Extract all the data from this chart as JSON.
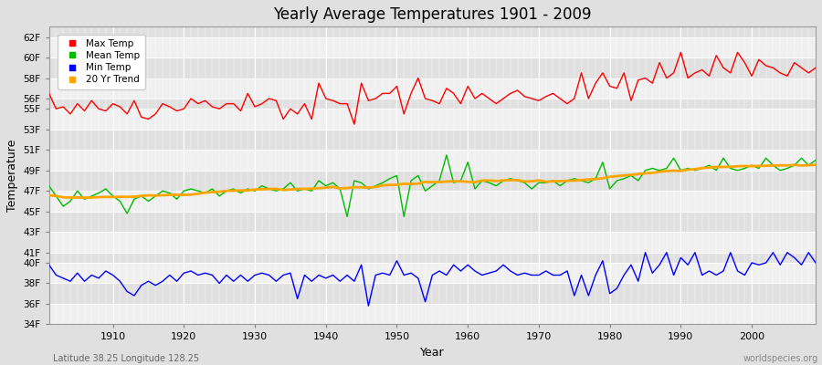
{
  "title": "Yearly Average Temperatures 1901 - 2009",
  "xlabel": "Year",
  "ylabel": "Temperature",
  "years": [
    1901,
    1902,
    1903,
    1904,
    1905,
    1906,
    1907,
    1908,
    1909,
    1910,
    1911,
    1912,
    1913,
    1914,
    1915,
    1916,
    1917,
    1918,
    1919,
    1920,
    1921,
    1922,
    1923,
    1924,
    1925,
    1926,
    1927,
    1928,
    1929,
    1930,
    1931,
    1932,
    1933,
    1934,
    1935,
    1936,
    1937,
    1938,
    1939,
    1940,
    1941,
    1942,
    1943,
    1944,
    1945,
    1946,
    1947,
    1948,
    1949,
    1950,
    1951,
    1952,
    1953,
    1954,
    1955,
    1956,
    1957,
    1958,
    1959,
    1960,
    1961,
    1962,
    1963,
    1964,
    1965,
    1966,
    1967,
    1968,
    1969,
    1970,
    1971,
    1972,
    1973,
    1974,
    1975,
    1976,
    1977,
    1978,
    1979,
    1980,
    1981,
    1982,
    1983,
    1984,
    1985,
    1986,
    1987,
    1988,
    1989,
    1990,
    1991,
    1992,
    1993,
    1994,
    1995,
    1996,
    1997,
    1998,
    1999,
    2000,
    2001,
    2002,
    2003,
    2004,
    2005,
    2006,
    2007,
    2008,
    2009
  ],
  "max_temp": [
    56.5,
    55.0,
    55.2,
    54.5,
    55.5,
    54.8,
    55.8,
    55.0,
    54.8,
    55.5,
    55.2,
    54.5,
    55.8,
    54.2,
    54.0,
    54.5,
    55.5,
    55.2,
    54.8,
    55.0,
    56.0,
    55.5,
    55.8,
    55.2,
    55.0,
    55.5,
    55.5,
    54.8,
    56.5,
    55.2,
    55.5,
    56.0,
    55.8,
    54.0,
    55.0,
    54.5,
    55.5,
    54.0,
    57.5,
    56.0,
    55.8,
    55.5,
    55.5,
    53.5,
    57.5,
    55.8,
    56.0,
    56.5,
    56.5,
    57.2,
    54.5,
    56.5,
    58.0,
    56.0,
    55.8,
    55.5,
    57.0,
    56.5,
    55.5,
    57.2,
    56.0,
    56.5,
    56.0,
    55.5,
    56.0,
    56.5,
    56.8,
    56.2,
    56.0,
    55.8,
    56.2,
    56.5,
    56.0,
    55.5,
    56.0,
    58.5,
    56.0,
    57.5,
    58.5,
    57.2,
    57.0,
    58.5,
    55.8,
    57.8,
    58.0,
    57.5,
    59.5,
    58.0,
    58.5,
    60.5,
    58.0,
    58.5,
    58.8,
    58.2,
    60.2,
    59.0,
    58.5,
    60.5,
    59.5,
    58.2,
    59.8,
    59.2,
    59.0,
    58.5,
    58.2,
    59.5,
    59.0,
    58.5,
    59.0
  ],
  "mean_temp": [
    47.5,
    46.5,
    45.5,
    46.0,
    47.0,
    46.2,
    46.5,
    46.8,
    47.2,
    46.5,
    46.0,
    44.8,
    46.2,
    46.5,
    46.0,
    46.5,
    47.0,
    46.8,
    46.2,
    47.0,
    47.2,
    47.0,
    46.8,
    47.2,
    46.5,
    47.0,
    47.2,
    46.8,
    47.2,
    47.0,
    47.5,
    47.2,
    47.0,
    47.2,
    47.8,
    47.0,
    47.2,
    47.0,
    48.0,
    47.5,
    47.8,
    47.2,
    44.5,
    48.0,
    47.8,
    47.2,
    47.5,
    47.8,
    48.2,
    48.5,
    44.5,
    48.0,
    48.5,
    47.0,
    47.5,
    48.0,
    50.5,
    47.8,
    48.0,
    49.8,
    47.2,
    48.0,
    47.8,
    47.5,
    48.0,
    48.2,
    48.0,
    47.8,
    47.2,
    47.8,
    47.8,
    48.0,
    47.5,
    48.0,
    48.2,
    48.0,
    47.8,
    48.2,
    49.8,
    47.2,
    48.0,
    48.2,
    48.5,
    48.0,
    49.0,
    49.2,
    49.0,
    49.2,
    50.2,
    49.0,
    49.2,
    49.0,
    49.2,
    49.5,
    49.0,
    50.2,
    49.2,
    49.0,
    49.2,
    49.5,
    49.2,
    50.2,
    49.5,
    49.0,
    49.2,
    49.5,
    50.2,
    49.5,
    50.0
  ],
  "min_temp": [
    39.8,
    38.8,
    38.5,
    38.2,
    39.0,
    38.2,
    38.8,
    38.5,
    39.2,
    38.8,
    38.2,
    37.2,
    36.8,
    37.8,
    38.2,
    37.8,
    38.2,
    38.8,
    38.2,
    39.0,
    39.2,
    38.8,
    39.0,
    38.8,
    38.0,
    38.8,
    38.2,
    38.8,
    38.2,
    38.8,
    39.0,
    38.8,
    38.2,
    38.8,
    39.0,
    36.5,
    38.8,
    38.2,
    38.8,
    38.5,
    38.8,
    38.2,
    38.8,
    38.2,
    39.8,
    35.8,
    38.8,
    39.0,
    38.8,
    40.2,
    38.8,
    39.0,
    38.5,
    36.2,
    38.8,
    39.2,
    38.8,
    39.8,
    39.2,
    39.8,
    39.2,
    38.8,
    39.0,
    39.2,
    39.8,
    39.2,
    38.8,
    39.0,
    38.8,
    38.8,
    39.2,
    38.8,
    38.8,
    39.2,
    36.8,
    38.8,
    36.8,
    38.8,
    40.2,
    37.0,
    37.5,
    38.8,
    39.8,
    38.2,
    41.0,
    39.0,
    39.8,
    41.0,
    38.8,
    40.5,
    39.8,
    41.0,
    38.8,
    39.2,
    38.8,
    39.2,
    41.0,
    39.2,
    38.8,
    40.0,
    39.8,
    40.0,
    41.0,
    39.8,
    41.0,
    40.5,
    39.8,
    41.0,
    40.0
  ],
  "max_color": "#ff0000",
  "mean_color": "#00bb00",
  "min_color": "#0000ff",
  "trend_color": "#ffa500",
  "bg_color": "#e0e0e0",
  "plot_bg_light": "#f0f0f0",
  "plot_bg_dark": "#e0e0e0",
  "grid_color": "#ffffff",
  "ylim_min": 34,
  "ylim_max": 63,
  "ytick_positions": [
    34,
    36,
    38,
    40,
    41,
    43,
    45,
    47,
    49,
    51,
    53,
    55,
    56,
    58,
    60,
    62
  ],
  "ytick_labels": [
    "34F",
    "36F",
    "38F",
    "40F",
    "41F",
    "43F",
    "45F",
    "47F",
    "49F",
    "51F",
    "53F",
    "55F",
    "56F",
    "58F",
    "60F",
    "62F"
  ],
  "xtick_positions": [
    1910,
    1920,
    1930,
    1940,
    1950,
    1960,
    1970,
    1980,
    1990,
    2000
  ],
  "subtitle_lat": "Latitude 38.25 Longitude 128.25",
  "watermark": "worldspecies.org",
  "linewidth": 1.0,
  "trend_linewidth": 2.0
}
